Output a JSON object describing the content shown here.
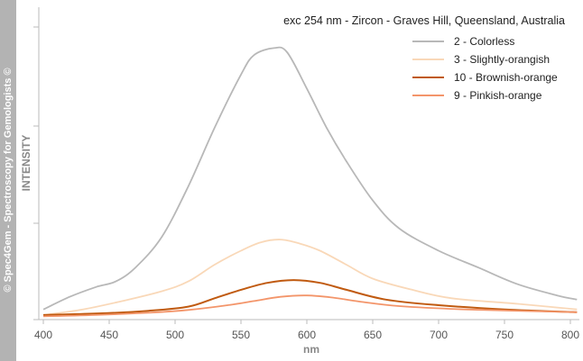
{
  "watermark": "© Spec4Gem - Spectroscopy for Gemologists ©",
  "chart_data": {
    "type": "line",
    "title": "exc 254 nm - Zircon - Graves Hill, Queensland, Australia",
    "xlabel": "nm",
    "ylabel": "INTENSITY",
    "xlim": [
      400,
      805
    ],
    "ylim": [
      0,
      100
    ],
    "xticks": [
      "400",
      "450",
      "500",
      "550",
      "600",
      "650",
      "700",
      "750",
      "800"
    ],
    "y_tick_labels_shown": false,
    "grid": false,
    "legend_position": "top-right",
    "series": [
      {
        "name": "2 - Colorless",
        "color": "#b8b8b8",
        "x": [
          400,
          420,
          440,
          455,
          470,
          490,
          510,
          530,
          550,
          560,
          575,
          585,
          600,
          615,
          630,
          650,
          670,
          700,
          730,
          760,
          790,
          805
        ],
        "y": [
          3,
          7.5,
          11,
          13,
          18,
          29,
          47,
          68,
          87,
          94,
          96.5,
          95,
          82,
          68,
          56,
          42,
          32,
          24,
          18,
          12,
          8,
          6.5
        ]
      },
      {
        "name": "3 - Slightly-orangish",
        "color": "#f9d8b8",
        "x": [
          400,
          430,
          460,
          490,
          510,
          530,
          550,
          565,
          580,
          595,
          610,
          630,
          650,
          680,
          710,
          760,
          805
        ],
        "y": [
          1,
          3,
          6,
          9.5,
          13,
          19,
          24,
          27,
          28,
          26.5,
          24,
          19,
          14,
          10,
          7,
          5,
          3
        ]
      },
      {
        "name": "10 - Brownish-orange",
        "color": "#c05a10",
        "x": [
          400,
          440,
          480,
          510,
          530,
          550,
          570,
          590,
          610,
          630,
          660,
          700,
          750,
          805
        ],
        "y": [
          1,
          1.5,
          2.5,
          4,
          7,
          10,
          12.5,
          13.5,
          12.5,
          10,
          6.5,
          4.5,
          3,
          2
        ]
      },
      {
        "name": "9 - Pinkish-orange",
        "color": "#f3956a",
        "x": [
          400,
          440,
          480,
          510,
          540,
          560,
          580,
          600,
          620,
          640,
          670,
          720,
          805
        ],
        "y": [
          0.5,
          1,
          1.8,
          2.8,
          4.5,
          6,
          7.5,
          8,
          7.2,
          5.8,
          4.2,
          3,
          2
        ]
      }
    ]
  }
}
